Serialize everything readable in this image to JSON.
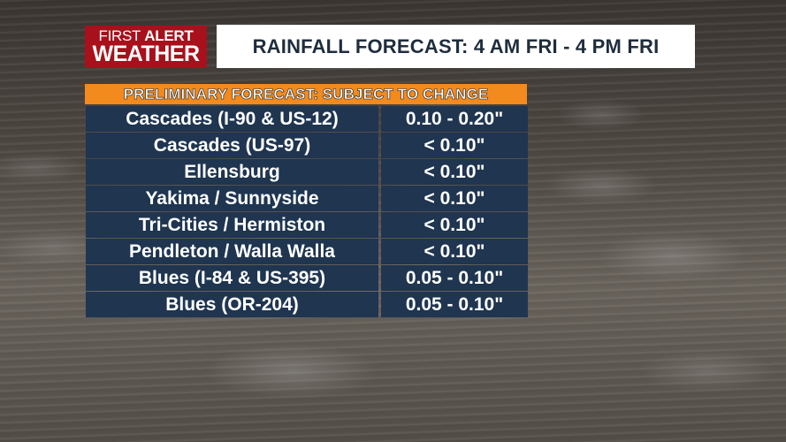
{
  "logo": {
    "line1_light": "FIRST",
    "line1_bold": "ALERT",
    "line2": "WEATHER",
    "color": "#a8101c"
  },
  "header": {
    "title": "RAINFALL FORECAST: 4 AM FRI - 4 PM FRI"
  },
  "banner": {
    "text": "PRELIMINARY FORECAST: SUBJECT TO CHANGE",
    "color": "#f28a1e"
  },
  "table": {
    "row_color": "#1f3550",
    "rows": [
      {
        "location": "Cascades (I-90 & US-12)",
        "amount": "0.10 - 0.20\""
      },
      {
        "location": "Cascades (US-97)",
        "amount": "< 0.10\""
      },
      {
        "location": "Ellensburg",
        "amount": "< 0.10\""
      },
      {
        "location": "Yakima / Sunnyside",
        "amount": "< 0.10\""
      },
      {
        "location": "Tri-Cities / Hermiston",
        "amount": "< 0.10\""
      },
      {
        "location": "Pendleton / Walla Walla",
        "amount": "< 0.10\""
      },
      {
        "location": "Blues (I-84 & US-395)",
        "amount": "0.05 - 0.10\""
      },
      {
        "location": "Blues (OR-204)",
        "amount": "0.05 - 0.10\""
      }
    ]
  }
}
